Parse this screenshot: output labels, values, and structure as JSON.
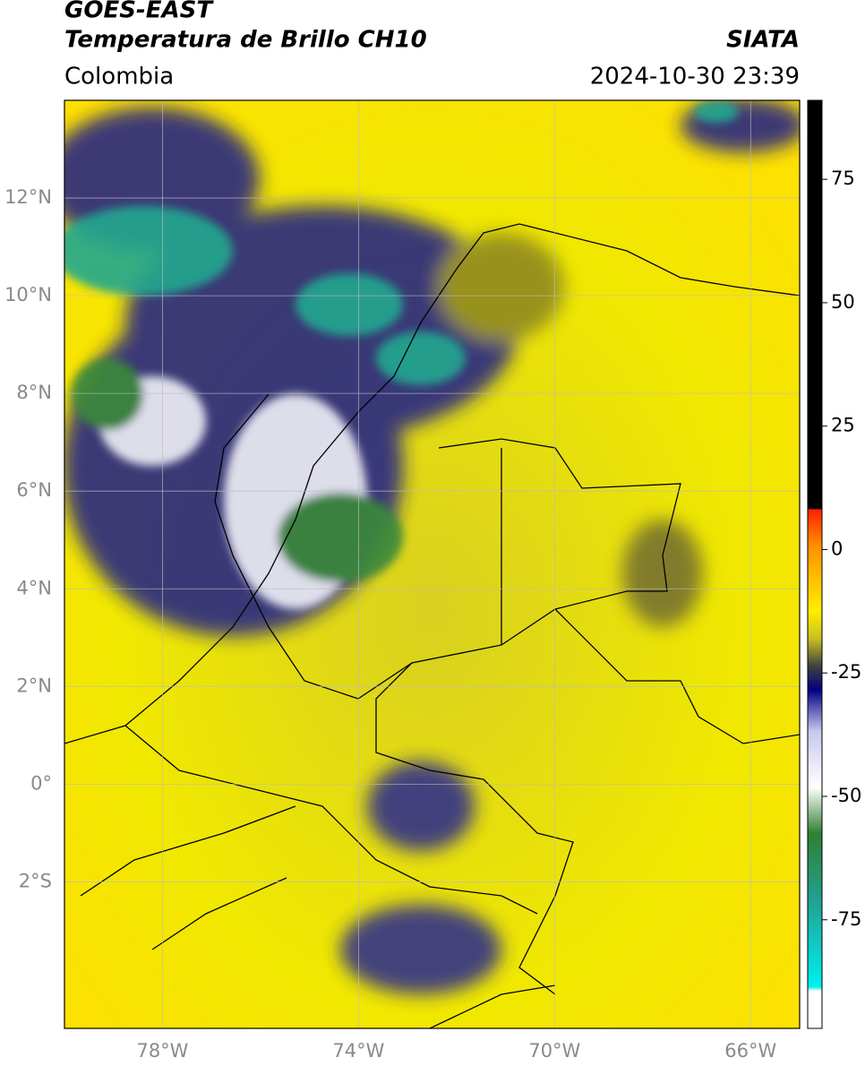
{
  "header": {
    "satellite": "GOES-EAST",
    "product": "Temperatura de Brillo CH10",
    "region": "Colombia",
    "source": "SIATA",
    "datetime": "2024-10-30 23:39"
  },
  "map": {
    "xlim": [
      -80,
      -65
    ],
    "ylim": [
      -5,
      14
    ],
    "xticks": [
      {
        "value": -78,
        "label": "78°W"
      },
      {
        "value": -74,
        "label": "74°W"
      },
      {
        "value": -70,
        "label": "70°W"
      },
      {
        "value": -66,
        "label": "66°W"
      }
    ],
    "yticks": [
      {
        "value": 12,
        "label": "12°N"
      },
      {
        "value": 10,
        "label": "10°N"
      },
      {
        "value": 8,
        "label": "8°N"
      },
      {
        "value": 6,
        "label": "6°N"
      },
      {
        "value": 4,
        "label": "4°N"
      },
      {
        "value": 2,
        "label": "2°N"
      },
      {
        "value": 0,
        "label": "0°"
      },
      {
        "value": -2,
        "label": "2°S"
      }
    ]
  },
  "colorbar": {
    "clim": [
      -97,
      91
    ],
    "ticks": [
      75,
      50,
      25,
      0,
      -25,
      -50,
      -75
    ]
  }
}
